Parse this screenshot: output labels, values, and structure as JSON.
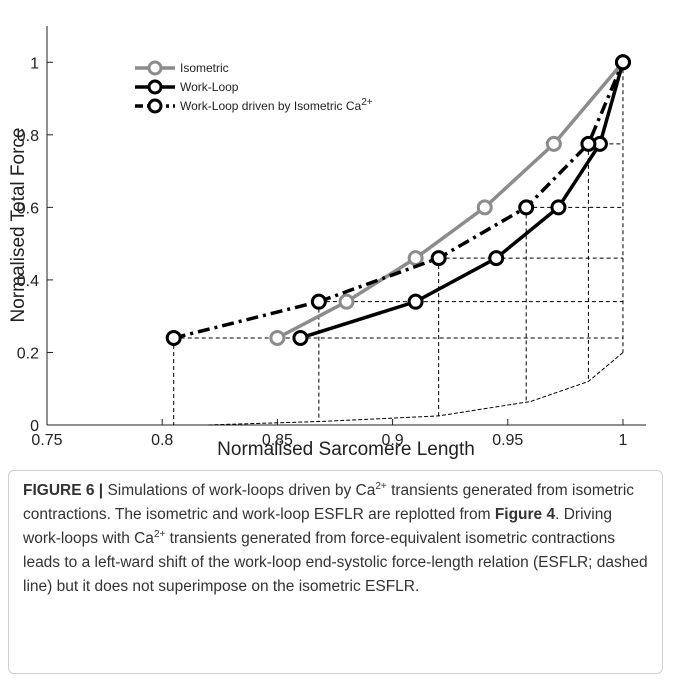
{
  "chart_data": {
    "type": "line",
    "xlabel": "Normalised Sarcomere Length",
    "ylabel": "Normalised Total Force",
    "xlim": [
      0.75,
      1.01
    ],
    "ylim": [
      0,
      1.1
    ],
    "xticks": [
      0.75,
      0.8,
      0.85,
      0.9,
      0.95,
      1
    ],
    "yticks": [
      0,
      0.2,
      0.4,
      0.6,
      0.8,
      1
    ],
    "legend": "upper left",
    "series": [
      {
        "name": "Isometric",
        "color": "#8c8c8c",
        "linestyle": "solid",
        "x": [
          0.85,
          0.88,
          0.91,
          0.94,
          0.97,
          1
        ],
        "values": [
          0.24,
          0.34,
          0.46,
          0.6,
          0.775,
          1
        ]
      },
      {
        "name": "Work-Loop",
        "color": "#000000",
        "linestyle": "solid",
        "x": [
          0.86,
          0.91,
          0.945,
          0.972,
          0.99,
          1
        ],
        "values": [
          0.24,
          0.34,
          0.46,
          0.6,
          0.775,
          1
        ]
      },
      {
        "name": "Work-Loop driven by Isometric Ca2+",
        "color": "#000000",
        "linestyle": "dashdot",
        "x": [
          0.805,
          0.868,
          0.92,
          0.958,
          0.985,
          1
        ],
        "values": [
          0.24,
          0.34,
          0.46,
          0.6,
          0.775,
          1
        ]
      }
    ],
    "curve": {
      "x": [
        0.82,
        0.87,
        0.92,
        0.96,
        0.985,
        1
      ],
      "values": [
        0,
        0.01,
        0.025,
        0.065,
        0.12,
        0.2
      ]
    }
  },
  "caption": {
    "label": "FIGURE 6 |",
    "parts": [
      "Simulations of work-loops driven by Ca",
      "2+",
      " transients generated from isometric contractions. The isometric and work-loop ESFLR are replotted from ",
      "Figure 4",
      ". Driving work-loops with Ca",
      "2+",
      " transients generated from force-equivalent isometric contractions leads to a left-ward shift of the work-loop end-systolic force-length relation (ESFLR; dashed line) but it does not superimpose on the isometric ESFLR."
    ]
  }
}
